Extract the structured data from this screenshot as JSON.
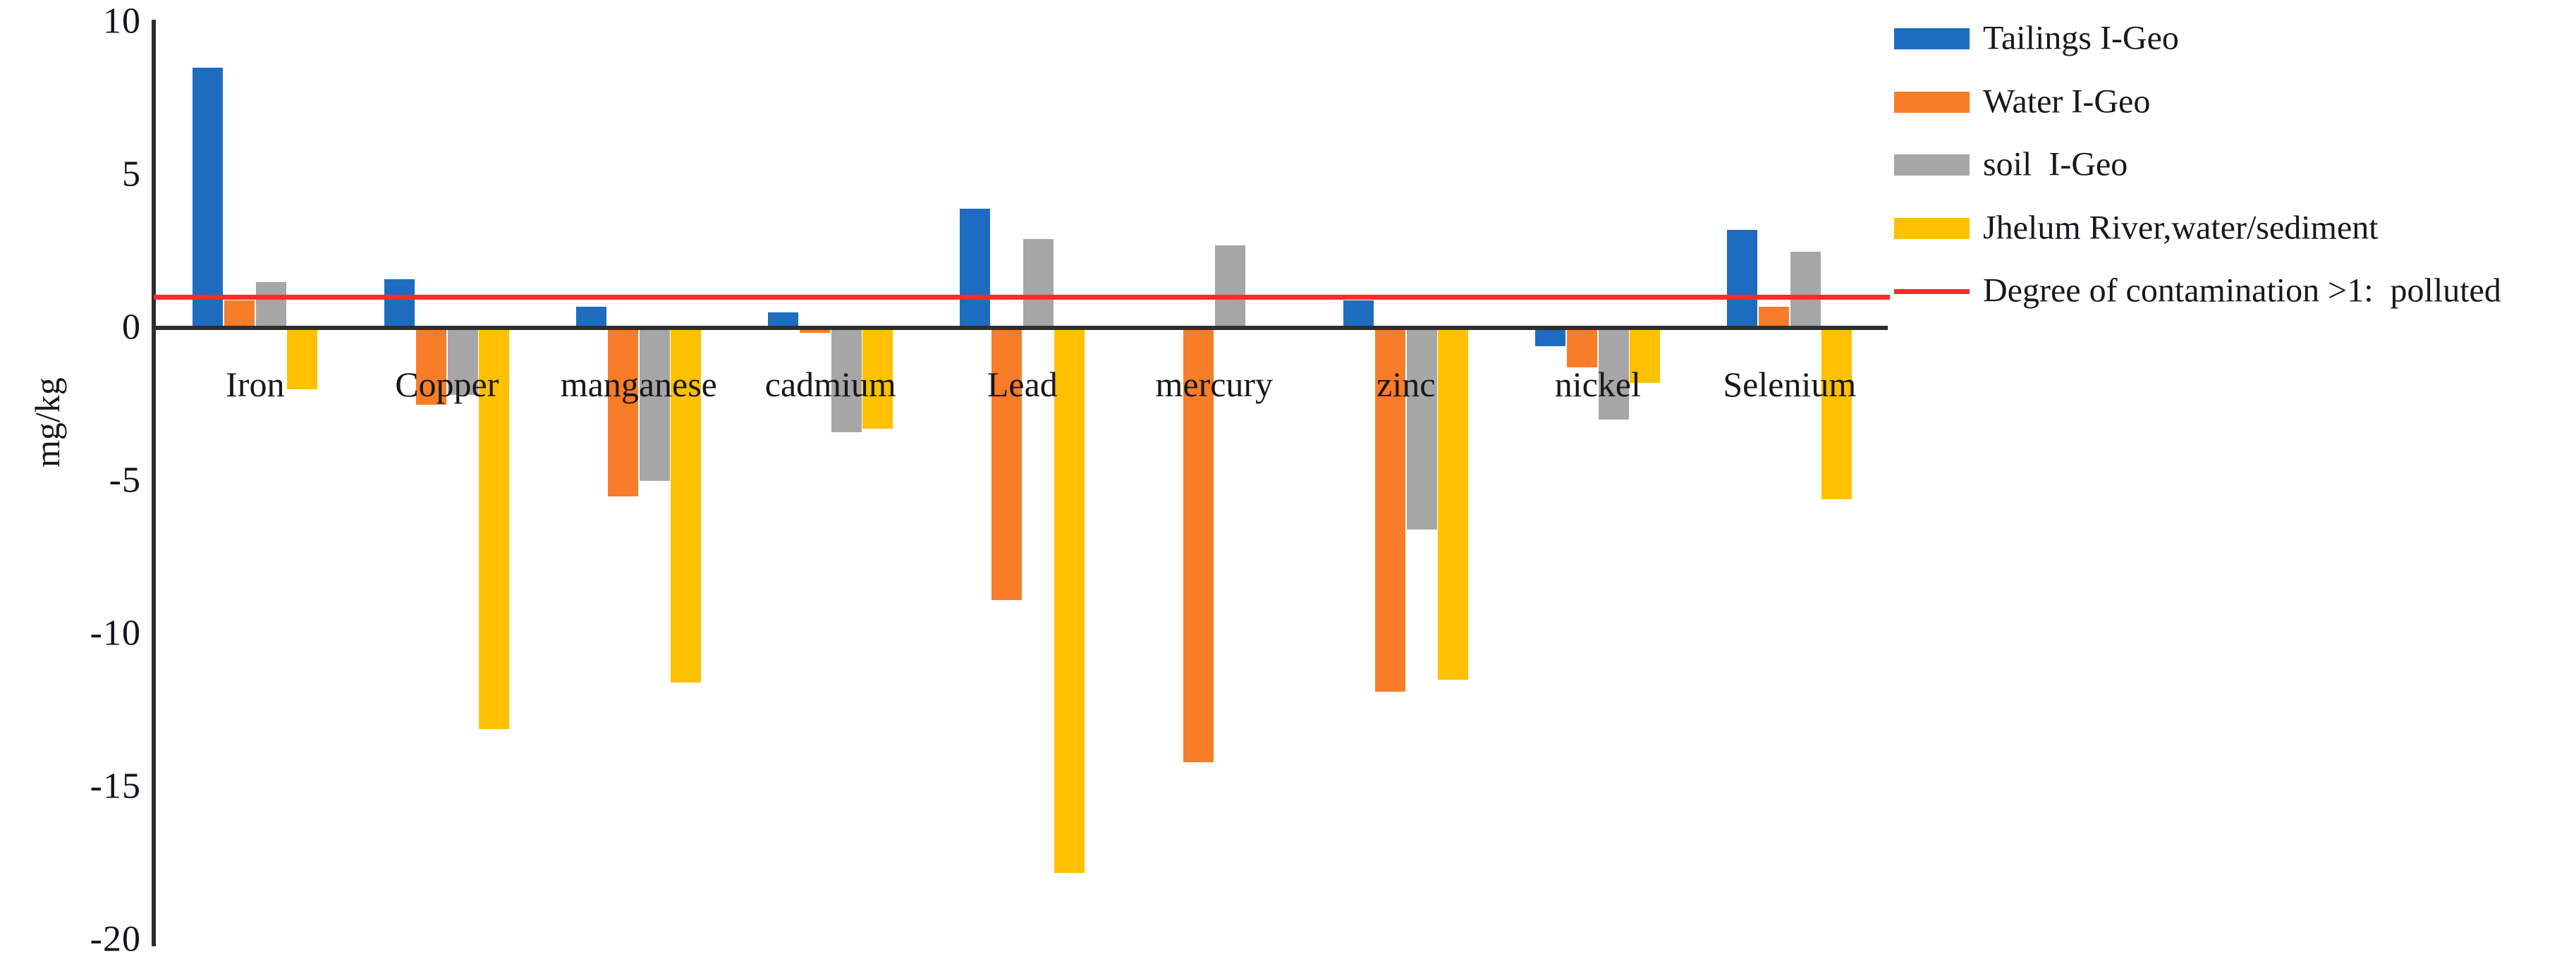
{
  "chart_data": {
    "type": "bar",
    "title": "",
    "ylabel": "mg/kg",
    "ylim": [
      -20,
      10
    ],
    "yticks": [
      10,
      5,
      0,
      -5,
      -10,
      -15,
      -20
    ],
    "grid": false,
    "legend_position": "top-right",
    "categories": [
      "Iron",
      "Copper",
      "manganese",
      "cadmium",
      "Lead",
      "mercury",
      "zinc",
      "nickel",
      "Selenium"
    ],
    "series": [
      {
        "name": "Tailings I-Geo",
        "color": "#1e6cc0",
        "values": [
          8.5,
          1.6,
          0.7,
          0.5,
          3.9,
          0,
          0.9,
          -0.6,
          3.2
        ]
      },
      {
        "name": "Water I-Geo",
        "color": "#f97d28",
        "values": [
          0.9,
          -2.5,
          -5.5,
          -0.15,
          -8.9,
          -14.2,
          -11.9,
          -1.3,
          0.7
        ]
      },
      {
        "name": "soil  I-Geo",
        "color": "#a6a6a6",
        "values": [
          1.5,
          -2.2,
          -5.0,
          -3.4,
          2.9,
          2.7,
          -6.6,
          -3.0,
          2.5
        ]
      },
      {
        "name": "Jhelum River,water/sediment",
        "color": "#ffc000",
        "values": [
          -2.0,
          -13.1,
          -11.6,
          -3.3,
          -17.8,
          0,
          -11.5,
          -1.8,
          -5.6
        ]
      }
    ],
    "reference_line": {
      "label": "Degree of contamination >1:  polluted",
      "value": 1,
      "color": "#fb2b2b"
    }
  }
}
